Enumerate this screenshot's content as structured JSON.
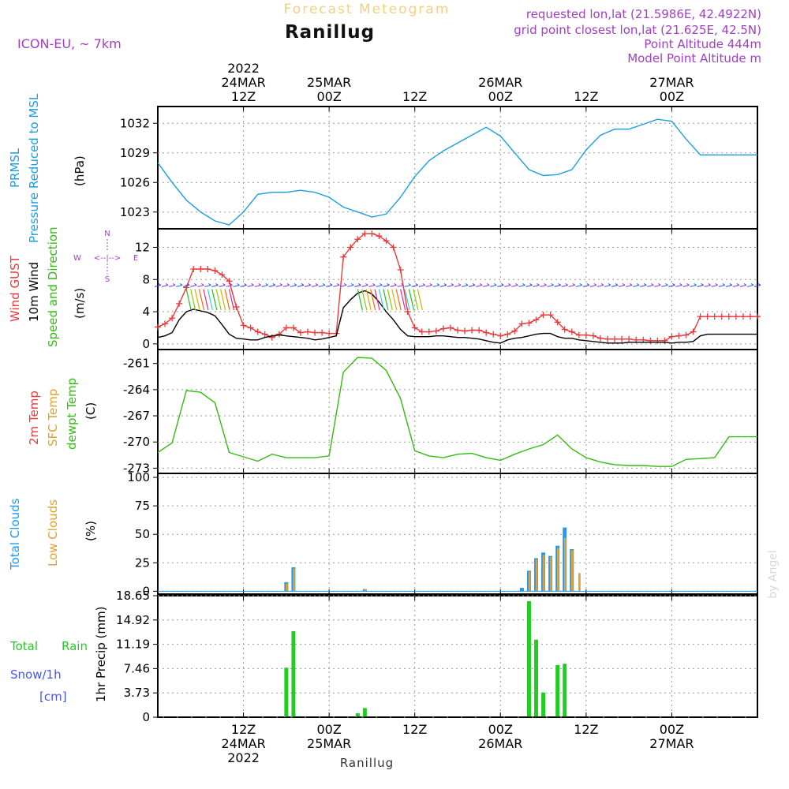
{
  "header": {
    "title": "Ranillug",
    "faded_title": "Forecast Meteogram",
    "model": "ICON-EU, ~ 7km",
    "requested": "requested lon,lat (21.5986E, 42.4922N)",
    "closest": "grid point closest lon,lat (21.625E, 42.5N)",
    "point_alt": "Point Altitude 444m",
    "model_alt": "Model Point Altitude m",
    "footer": "Ranillug",
    "credit": "by Angel"
  },
  "colors": {
    "pressure": "#1a9ee0",
    "gust": "#e83a3a",
    "wind": "#000000",
    "temp": "#33bb11",
    "cloud_total": "#2299ee",
    "cloud_low": "#e0a030",
    "rain": "#22cc22",
    "snow": "#4455ee",
    "label_purple": "#a040c0",
    "faded": "#f3d080"
  },
  "time_axis": {
    "top": [
      {
        "hour": 12,
        "lines": [
          "2022",
          "24MAR",
          "12Z"
        ]
      },
      {
        "hour": 24,
        "lines": [
          "25MAR",
          "00Z"
        ]
      },
      {
        "hour": 36,
        "lines": [
          "12Z"
        ]
      },
      {
        "hour": 48,
        "lines": [
          "26MAR",
          "00Z"
        ]
      },
      {
        "hour": 60,
        "lines": [
          "12Z"
        ]
      },
      {
        "hour": 72,
        "lines": [
          "27MAR",
          "00Z"
        ]
      }
    ],
    "bottom": [
      {
        "hour": 12,
        "lines": [
          "12Z",
          "24MAR",
          "2022"
        ]
      },
      {
        "hour": 24,
        "lines": [
          "00Z",
          "25MAR"
        ]
      },
      {
        "hour": 36,
        "lines": [
          "12Z"
        ]
      },
      {
        "hour": 48,
        "lines": [
          "00Z",
          "26MAR"
        ]
      },
      {
        "hour": 60,
        "lines": [
          "12Z"
        ]
      },
      {
        "hour": 72,
        "lines": [
          "00Z",
          "27MAR"
        ]
      }
    ]
  },
  "panel_labels": {
    "pressure": {
      "l1": "PRMSL",
      "l2": "Pressure Reduced to MSL",
      "unit": "(hPa)"
    },
    "wind": {
      "l1": "Wind GUST",
      "l2": "10m Wind",
      "l3": "Speed and Direction",
      "unit": "(m/s)",
      "compass_n": "N",
      "compass_s": "S",
      "compass_w": "W",
      "compass_e": "E"
    },
    "temp": {
      "l1": "2m Temp",
      "l2": "SFC Temp",
      "l3": "dewpt Temp",
      "unit": "(C)"
    },
    "clouds": {
      "l1": "Total Clouds",
      "l2": "Low Clouds",
      "unit": "(%)"
    },
    "precip": {
      "l1": "Total",
      "l1b": "Rain",
      "l2": "Snow/1h",
      "l3": "[cm]",
      "unit": "1hr Precip (mm)"
    }
  },
  "chart_data": [
    {
      "type": "line",
      "title": "PRMSL Pressure Reduced to MSL",
      "ylabel": "(hPa)",
      "x_unit": "hours since 24MAR 06Z",
      "ylim": [
        1021.3,
        1033.7
      ],
      "yticks": [
        "1023",
        "1026",
        "1029",
        "1032"
      ],
      "series": [
        {
          "name": "Pressure",
          "x": [
            0,
            2,
            4,
            6,
            8,
            10,
            12,
            14,
            16,
            18,
            20,
            22,
            24,
            26,
            28,
            30,
            32,
            34,
            36,
            38,
            40,
            42,
            44,
            46,
            48,
            50,
            52,
            54,
            56,
            58,
            60,
            62,
            64,
            66,
            68,
            70,
            72,
            74,
            76,
            78,
            80,
            82,
            84
          ],
          "values": [
            1028.0,
            1026.0,
            1024.2,
            1023.0,
            1022.1,
            1021.7,
            1023.0,
            1024.8,
            1025.0,
            1025.0,
            1025.2,
            1025.0,
            1024.5,
            1023.5,
            1023.0,
            1022.5,
            1022.8,
            1024.5,
            1026.6,
            1028.2,
            1029.2,
            1030.0,
            1030.8,
            1031.6,
            1030.7,
            1029.0,
            1027.3,
            1026.7,
            1026.8,
            1027.3,
            1029.3,
            1030.8,
            1031.4,
            1031.4,
            1031.9,
            1032.4,
            1032.2,
            1030.4,
            1028.8,
            1028.8,
            1028.8,
            1028.8,
            1028.8
          ]
        }
      ]
    },
    {
      "type": "line",
      "title": "Wind GUST / 10m Wind Speed and Direction",
      "ylabel": "(m/s)",
      "ylim": [
        -0.7,
        14.3
      ],
      "yticks": [
        "0",
        "4",
        "8",
        "12"
      ],
      "series": [
        {
          "name": "Wind GUST",
          "x": [
            0,
            1,
            2,
            3,
            4,
            5,
            6,
            7,
            8,
            9,
            10,
            11,
            12,
            13,
            14,
            15,
            16,
            17,
            18,
            19,
            20,
            21,
            22,
            23,
            24,
            25,
            26,
            27,
            28,
            29,
            30,
            31,
            32,
            33,
            34,
            35,
            36,
            37,
            38,
            39,
            40,
            41,
            42,
            43,
            44,
            45,
            46,
            47,
            48,
            49,
            50,
            51,
            52,
            53,
            54,
            55,
            56,
            57,
            58,
            59,
            60,
            61,
            62,
            63,
            64,
            65,
            66,
            67,
            68,
            69,
            70,
            71,
            72,
            73,
            74,
            75,
            76,
            77,
            78,
            79,
            80,
            81,
            82,
            83,
            84
          ],
          "values": [
            2.1,
            2.5,
            3.2,
            5.0,
            7.0,
            9.3,
            9.3,
            9.3,
            9.1,
            8.6,
            7.8,
            4.6,
            2.3,
            2.0,
            1.5,
            1.2,
            0.8,
            1.2,
            2.0,
            2.0,
            1.4,
            1.5,
            1.4,
            1.4,
            1.3,
            1.3,
            10.8,
            12.0,
            13.0,
            13.7,
            13.7,
            13.4,
            12.8,
            12.0,
            9.2,
            4.0,
            2.0,
            1.5,
            1.5,
            1.6,
            1.9,
            2.0,
            1.7,
            1.6,
            1.7,
            1.7,
            1.4,
            1.2,
            1.0,
            1.2,
            1.6,
            2.5,
            2.6,
            3.0,
            3.6,
            3.6,
            2.7,
            1.8,
            1.5,
            1.1,
            1.1,
            1.0,
            0.7,
            0.6,
            0.6,
            0.6,
            0.6,
            0.5,
            0.5,
            0.4,
            0.4,
            0.4,
            0.9,
            1.0,
            1.1,
            1.5,
            3.4,
            3.4,
            3.4,
            3.4,
            3.4,
            3.4,
            3.4,
            3.4,
            3.4
          ]
        },
        {
          "name": "10m Wind",
          "x": [
            0,
            1,
            2,
            3,
            4,
            5,
            6,
            7,
            8,
            9,
            10,
            11,
            12,
            13,
            14,
            15,
            16,
            17,
            18,
            19,
            20,
            21,
            22,
            23,
            24,
            25,
            26,
            27,
            28,
            29,
            30,
            31,
            32,
            33,
            34,
            35,
            36,
            37,
            38,
            39,
            40,
            41,
            42,
            43,
            44,
            45,
            46,
            47,
            48,
            49,
            50,
            51,
            52,
            53,
            54,
            55,
            56,
            57,
            58,
            59,
            60,
            61,
            62,
            63,
            64,
            65,
            66,
            67,
            68,
            69,
            70,
            71,
            72,
            73,
            74,
            75,
            76,
            77,
            78,
            79,
            80,
            81,
            82,
            83,
            84
          ],
          "values": [
            0.8,
            1.0,
            1.4,
            3.0,
            4.0,
            4.3,
            4.1,
            3.9,
            3.5,
            2.4,
            1.2,
            0.7,
            0.6,
            0.5,
            0.5,
            0.8,
            1.0,
            1.1,
            1.0,
            0.9,
            0.8,
            0.7,
            0.5,
            0.6,
            0.8,
            1.0,
            4.5,
            5.5,
            6.3,
            6.6,
            6.2,
            5.2,
            4.0,
            3.0,
            1.8,
            1.0,
            0.9,
            0.9,
            0.9,
            1.0,
            1.0,
            0.9,
            0.8,
            0.8,
            0.7,
            0.6,
            0.4,
            0.2,
            0.1,
            0.5,
            0.7,
            0.8,
            1.0,
            1.2,
            1.3,
            1.3,
            0.9,
            0.7,
            0.7,
            0.5,
            0.4,
            0.3,
            0.2,
            0.1,
            0.1,
            0.1,
            0.2,
            0.2,
            0.2,
            0.2,
            0.2,
            0.2,
            0.1,
            0.2,
            0.2,
            0.3,
            1.0,
            1.2,
            1.2,
            1.2,
            1.2,
            1.2,
            1.2,
            1.2,
            1.2
          ]
        }
      ]
    },
    {
      "type": "line",
      "title": "2m Temp / SFC Temp / dewpt Temp",
      "ylabel": "(C)",
      "ylim": [
        -273.6,
        -259.4
      ],
      "yticks": [
        "-261",
        "-264",
        "-267",
        "-270",
        "-273"
      ],
      "series": [
        {
          "name": "dewpt Temp",
          "x": [
            0,
            2,
            4,
            6,
            8,
            10,
            12,
            14,
            16,
            18,
            20,
            22,
            24,
            26,
            28,
            30,
            32,
            34,
            36,
            38,
            40,
            42,
            44,
            46,
            48,
            50,
            52,
            54,
            56,
            58,
            60,
            62,
            64,
            66,
            68,
            70,
            72,
            74,
            76,
            78,
            80,
            82,
            84
          ],
          "values": [
            -271.2,
            -270.1,
            -264.1,
            -264.3,
            -265.5,
            -271.2,
            -271.7,
            -272.2,
            -271.4,
            -271.8,
            -271.8,
            -271.8,
            -271.6,
            -262.0,
            -260.3,
            -260.4,
            -261.8,
            -265.0,
            -271.0,
            -271.6,
            -271.8,
            -271.4,
            -271.3,
            -271.8,
            -272.1,
            -271.4,
            -270.8,
            -270.3,
            -269.2,
            -270.8,
            -271.8,
            -272.3,
            -272.6,
            -272.7,
            -272.7,
            -272.8,
            -272.8,
            -272.0,
            -271.9,
            -271.8,
            -269.4,
            -269.4,
            -269.4
          ]
        }
      ]
    },
    {
      "type": "bar",
      "title": "Total Clouds / Low Clouds",
      "ylabel": "(%)",
      "ylim": [
        -2.5,
        103.5
      ],
      "yticks": [
        "0",
        "25",
        "50",
        "75",
        "100"
      ],
      "series": [
        {
          "name": "Total Clouds",
          "x": [
            18,
            19,
            29,
            51,
            52,
            53,
            54,
            55,
            56,
            57,
            58
          ],
          "values": [
            8,
            21,
            2,
            3,
            18,
            29,
            34,
            31,
            40,
            56,
            37
          ]
        },
        {
          "name": "Low Clouds",
          "x": [
            18,
            19,
            29,
            51,
            52,
            53,
            54,
            55,
            56,
            57,
            58,
            59
          ],
          "values": [
            7,
            20,
            2,
            0,
            17,
            28,
            32,
            30,
            38,
            47,
            36,
            16
          ]
        }
      ]
    },
    {
      "type": "bar",
      "title": "1hr Precip",
      "ylabel": "1hr Precip (mm)",
      "ylim": [
        0,
        18.65
      ],
      "yticks": [
        "0",
        "3.73",
        "7.46",
        "11.19",
        "14.92",
        "18.65"
      ],
      "series": [
        {
          "name": "Total Rain",
          "x": [
            18,
            19,
            28,
            29,
            52,
            53,
            54,
            56,
            57
          ],
          "values": [
            7.6,
            13.2,
            0.6,
            1.4,
            17.8,
            11.9,
            3.8,
            8.0,
            8.2
          ]
        }
      ]
    }
  ]
}
